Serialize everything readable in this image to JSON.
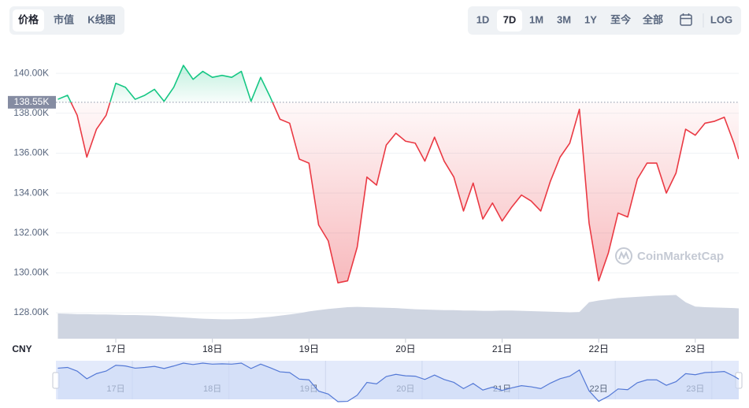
{
  "controls": {
    "chart_tabs": [
      "价格",
      "市值",
      "K线图"
    ],
    "active_tab": 0,
    "ranges": [
      "1D",
      "7D",
      "1M",
      "3M",
      "1Y",
      "至今",
      "全部"
    ],
    "active_range": 1,
    "log": "LOG"
  },
  "chart_data": {
    "type": "line",
    "currency": "CNY",
    "watermark": "CoinMarketCap",
    "grid": true,
    "xlim": [
      16.38,
      23.45
    ],
    "xticks": [
      {
        "value": 17,
        "label": "17日"
      },
      {
        "value": 18,
        "label": "18日"
      },
      {
        "value": 19,
        "label": "19日"
      },
      {
        "value": 20,
        "label": "20日"
      },
      {
        "value": 21,
        "label": "21日"
      },
      {
        "value": 22,
        "label": "22日"
      },
      {
        "value": 23,
        "label": "23日"
      }
    ],
    "ylim": [
      126700,
      141900
    ],
    "yticks": [
      {
        "value": 128000,
        "label": "128.00K"
      },
      {
        "value": 130000,
        "label": "130.00K"
      },
      {
        "value": 132000,
        "label": "132.00K"
      },
      {
        "value": 134000,
        "label": "134.00K"
      },
      {
        "value": 136000,
        "label": "136.00K"
      },
      {
        "value": 138000,
        "label": "138.00K"
      },
      {
        "value": 140000,
        "label": "140.00K"
      }
    ],
    "baseline": {
      "value": 138550,
      "label": "138.55K"
    },
    "y2lim": [
      0,
      100
    ],
    "x": [
      16.4,
      16.5,
      16.6,
      16.7,
      16.8,
      16.9,
      17.0,
      17.1,
      17.2,
      17.3,
      17.4,
      17.5,
      17.6,
      17.7,
      17.8,
      17.9,
      18.0,
      18.1,
      18.2,
      18.3,
      18.4,
      18.5,
      18.6,
      18.7,
      18.8,
      18.9,
      19.0,
      19.1,
      19.2,
      19.3,
      19.4,
      19.5,
      19.6,
      19.7,
      19.8,
      19.9,
      20.0,
      20.1,
      20.2,
      20.3,
      20.4,
      20.5,
      20.6,
      20.7,
      20.8,
      20.9,
      21.0,
      21.1,
      21.2,
      21.3,
      21.4,
      21.5,
      21.6,
      21.7,
      21.8,
      21.9,
      22.0,
      22.1,
      22.2,
      22.3,
      22.4,
      22.5,
      22.6,
      22.7,
      22.8,
      22.9,
      23.0,
      23.1,
      23.2,
      23.3,
      23.4,
      23.45
    ],
    "series": [
      {
        "color_up": "#16c784",
        "color_down": "#ea3943",
        "values": [
          138700,
          138900,
          137900,
          135800,
          137200,
          137900,
          139500,
          139300,
          138700,
          138900,
          139200,
          138600,
          139300,
          140400,
          139700,
          140100,
          139800,
          139900,
          139800,
          140100,
          138600,
          139800,
          138800,
          137700,
          137500,
          135700,
          135500,
          132400,
          131600,
          129500,
          129600,
          131300,
          134800,
          134400,
          136400,
          137000,
          136600,
          136500,
          135600,
          136800,
          135600,
          134800,
          133100,
          134500,
          132700,
          133500,
          132600,
          133300,
          133900,
          133600,
          133100,
          134600,
          135800,
          136500,
          138200,
          132500,
          129600,
          131000,
          133000,
          132800,
          134700,
          135500,
          135500,
          134000,
          135000,
          137200,
          136900,
          137500,
          137600,
          137800,
          136500,
          135700
        ]
      },
      {
        "type": "area",
        "axis": "y2",
        "color": "#cfd5e1",
        "values": [
          8.3,
          8.2,
          8.1,
          8.1,
          8.0,
          8.0,
          7.9,
          7.8,
          7.8,
          7.7,
          7.6,
          7.4,
          7.2,
          7.0,
          6.8,
          6.6,
          6.5,
          6.4,
          6.4,
          6.5,
          6.6,
          6.9,
          7.2,
          7.6,
          8.0,
          8.4,
          9.0,
          9.4,
          9.8,
          10.1,
          10.4,
          10.5,
          10.4,
          10.3,
          10.2,
          10.1,
          9.9,
          9.7,
          9.6,
          9.5,
          9.4,
          9.4,
          9.3,
          9.3,
          9.2,
          9.2,
          9.3,
          9.3,
          9.2,
          9.1,
          9.0,
          8.9,
          8.8,
          8.7,
          8.8,
          12.0,
          12.6,
          13.0,
          13.4,
          13.6,
          13.8,
          14.0,
          14.2,
          14.3,
          14.4,
          12.0,
          10.6,
          10.4,
          10.3,
          10.2,
          10.1,
          10.0
        ]
      }
    ]
  }
}
